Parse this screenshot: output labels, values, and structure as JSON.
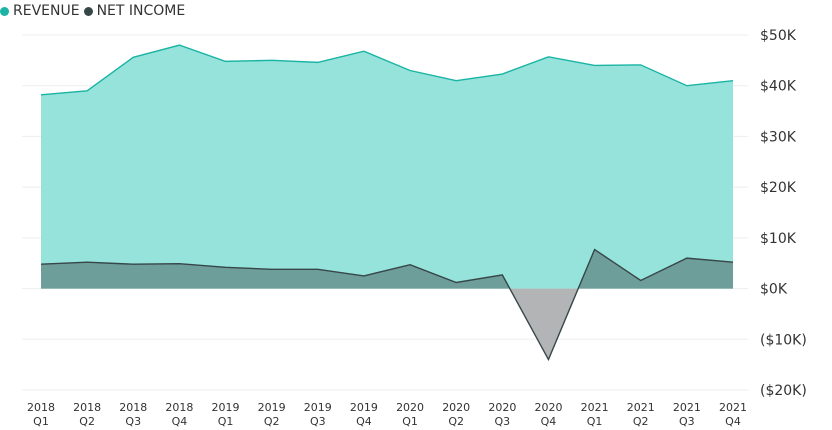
{
  "chart_data": {
    "type": "area",
    "legend_position": "top-left",
    "grid": true,
    "x": [
      {
        "year": "2018",
        "quarter": "Q1"
      },
      {
        "year": "2018",
        "quarter": "Q2"
      },
      {
        "year": "2018",
        "quarter": "Q3"
      },
      {
        "year": "2018",
        "quarter": "Q4"
      },
      {
        "year": "2019",
        "quarter": "Q1"
      },
      {
        "year": "2019",
        "quarter": "Q2"
      },
      {
        "year": "2019",
        "quarter": "Q3"
      },
      {
        "year": "2019",
        "quarter": "Q4"
      },
      {
        "year": "2020",
        "quarter": "Q1"
      },
      {
        "year": "2020",
        "quarter": "Q2"
      },
      {
        "year": "2020",
        "quarter": "Q3"
      },
      {
        "year": "2020",
        "quarter": "Q4"
      },
      {
        "year": "2021",
        "quarter": "Q1"
      },
      {
        "year": "2021",
        "quarter": "Q2"
      },
      {
        "year": "2021",
        "quarter": "Q3"
      },
      {
        "year": "2021",
        "quarter": "Q4"
      }
    ],
    "ylim": [
      -20000,
      50000
    ],
    "yticks": [
      {
        "value": 50000,
        "label": "$50K"
      },
      {
        "value": 40000,
        "label": "$40K"
      },
      {
        "value": 30000,
        "label": "$30K"
      },
      {
        "value": 20000,
        "label": "$20K"
      },
      {
        "value": 10000,
        "label": "$10K"
      },
      {
        "value": 0,
        "label": "$0K"
      },
      {
        "value": -10000,
        "label": "($10K)"
      },
      {
        "value": -20000,
        "label": "($20K)"
      }
    ],
    "series": [
      {
        "name": "REVENUE",
        "color": "#1AB4A4",
        "fill": "#95E3DB",
        "values": [
          38200,
          39000,
          45600,
          48000,
          44800,
          45000,
          44600,
          46800,
          43000,
          41000,
          42300,
          45700,
          44000,
          44100,
          40000,
          41000
        ]
      },
      {
        "name": "NET INCOME",
        "color": "#374649",
        "fill": "#6E9E99",
        "negative_fill": "#B2B4B6",
        "values": [
          4800,
          5200,
          4800,
          4900,
          4200,
          3800,
          3800,
          2500,
          4700,
          1200,
          2700,
          -14000,
          7700,
          1600,
          6000,
          5200
        ]
      }
    ]
  }
}
